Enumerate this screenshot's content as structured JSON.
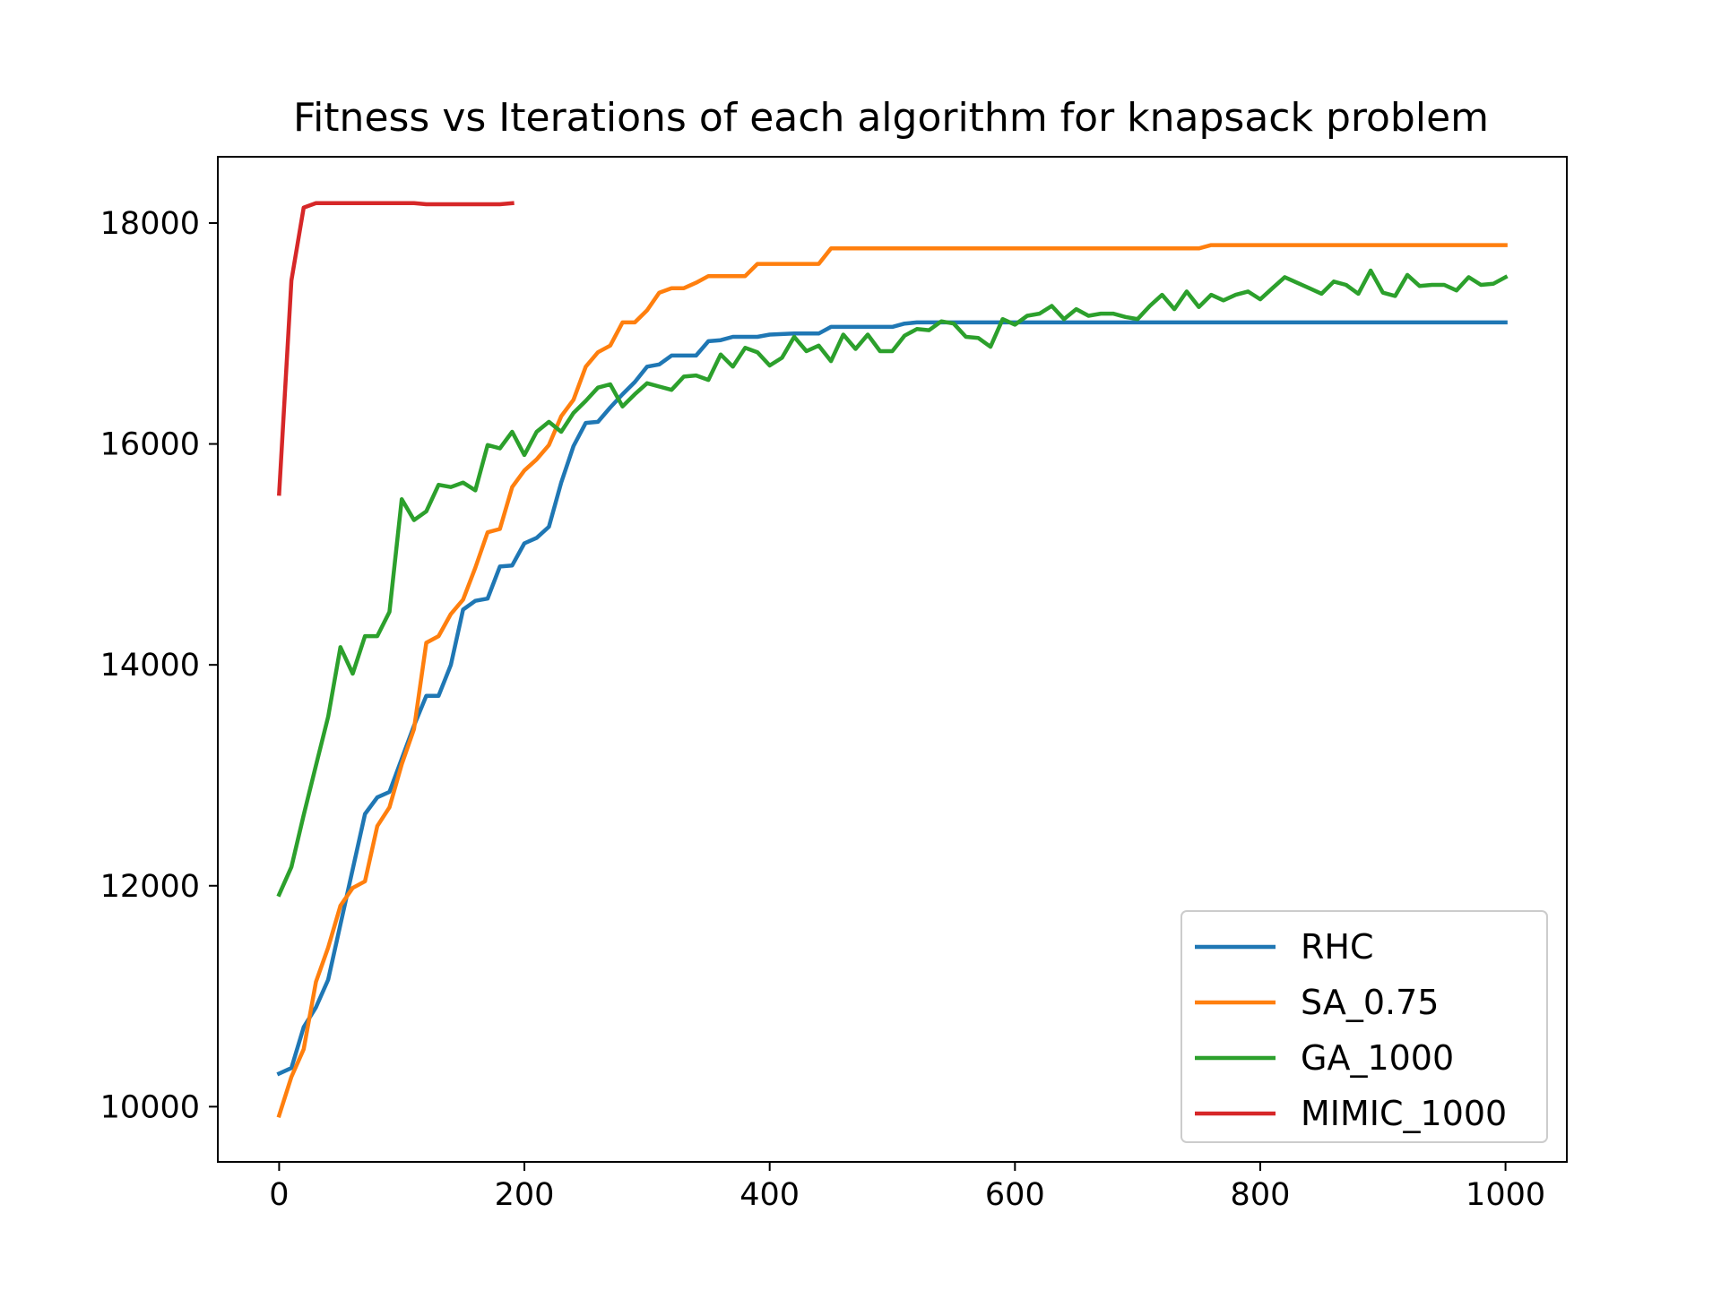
{
  "chart_data": {
    "type": "line",
    "title": "Fitness vs Iterations of each algorithm for knapsack problem",
    "xlabel": "",
    "ylabel": "",
    "xlim": [
      -50,
      1050
    ],
    "ylim": [
      9500,
      18600
    ],
    "xticks": [
      0,
      200,
      400,
      600,
      800,
      1000
    ],
    "yticks": [
      10000,
      12000,
      14000,
      16000,
      18000
    ],
    "grid": false,
    "legend_position": "lower-right",
    "series": [
      {
        "name": "RHC",
        "color": "#1f77b4",
        "x": [
          0,
          10,
          20,
          30,
          40,
          50,
          60,
          70,
          80,
          90,
          100,
          110,
          120,
          130,
          140,
          150,
          160,
          170,
          180,
          190,
          200,
          210,
          220,
          230,
          240,
          250,
          260,
          270,
          280,
          290,
          300,
          310,
          320,
          330,
          340,
          350,
          360,
          370,
          380,
          390,
          400,
          420,
          440,
          450,
          460,
          480,
          500,
          510,
          520,
          540,
          560,
          600,
          700,
          800,
          900,
          1000
        ],
        "y": [
          10300,
          10350,
          10720,
          10900,
          11150,
          11650,
          12150,
          12650,
          12800,
          12850,
          13150,
          13450,
          13720,
          13720,
          14000,
          14500,
          14580,
          14600,
          14890,
          14900,
          15100,
          15150,
          15250,
          15650,
          15980,
          16190,
          16200,
          16330,
          16450,
          16560,
          16700,
          16720,
          16800,
          16800,
          16800,
          16930,
          16940,
          16970,
          16970,
          16970,
          16990,
          17000,
          17000,
          17060,
          17060,
          17060,
          17060,
          17090,
          17100,
          17100,
          17100,
          17100,
          17100,
          17100,
          17100,
          17100
        ]
      },
      {
        "name": "SA_0.75",
        "color": "#ff7f0e",
        "x": [
          0,
          10,
          20,
          30,
          40,
          50,
          60,
          70,
          80,
          90,
          100,
          110,
          120,
          130,
          140,
          150,
          160,
          170,
          180,
          190,
          200,
          210,
          220,
          230,
          240,
          250,
          260,
          270,
          280,
          290,
          300,
          310,
          320,
          330,
          340,
          350,
          360,
          370,
          380,
          390,
          400,
          410,
          420,
          430,
          440,
          450,
          460,
          500,
          600,
          700,
          750,
          760,
          800,
          900,
          1000
        ],
        "y": [
          9920,
          10270,
          10520,
          11130,
          11440,
          11820,
          11980,
          12040,
          12540,
          12710,
          13100,
          13420,
          14200,
          14260,
          14460,
          14590,
          14880,
          15200,
          15230,
          15610,
          15760,
          15860,
          15990,
          16250,
          16400,
          16700,
          16830,
          16890,
          17100,
          17100,
          17210,
          17370,
          17410,
          17410,
          17460,
          17520,
          17520,
          17520,
          17520,
          17630,
          17630,
          17630,
          17630,
          17630,
          17630,
          17770,
          17770,
          17770,
          17770,
          17770,
          17770,
          17800,
          17800,
          17800,
          17800
        ]
      },
      {
        "name": "GA_1000",
        "color": "#2ca02c",
        "x": [
          0,
          10,
          20,
          30,
          40,
          50,
          60,
          70,
          80,
          90,
          100,
          110,
          120,
          130,
          140,
          150,
          160,
          170,
          180,
          190,
          200,
          210,
          220,
          230,
          240,
          250,
          260,
          270,
          280,
          290,
          300,
          310,
          320,
          330,
          340,
          350,
          360,
          370,
          380,
          390,
          400,
          410,
          420,
          430,
          440,
          450,
          460,
          470,
          480,
          490,
          500,
          510,
          520,
          530,
          540,
          550,
          560,
          570,
          580,
          590,
          600,
          610,
          620,
          630,
          640,
          650,
          660,
          670,
          680,
          690,
          700,
          710,
          720,
          730,
          740,
          750,
          760,
          770,
          780,
          790,
          800,
          810,
          820,
          830,
          840,
          850,
          860,
          870,
          880,
          890,
          900,
          910,
          920,
          930,
          940,
          950,
          960,
          970,
          980,
          990,
          1000
        ],
        "y": [
          11920,
          12170,
          12640,
          13090,
          13530,
          14160,
          13920,
          14260,
          14260,
          14480,
          15500,
          15310,
          15390,
          15630,
          15610,
          15650,
          15580,
          15990,
          15960,
          16110,
          15900,
          16110,
          16200,
          16110,
          16280,
          16390,
          16510,
          16540,
          16340,
          16450,
          16550,
          16520,
          16490,
          16610,
          16620,
          16580,
          16810,
          16700,
          16870,
          16830,
          16710,
          16780,
          16970,
          16840,
          16890,
          16750,
          16990,
          16860,
          16990,
          16840,
          16840,
          16980,
          17040,
          17030,
          17110,
          17090,
          16970,
          16960,
          16880,
          17130,
          17080,
          17160,
          17180,
          17250,
          17130,
          17220,
          17160,
          17180,
          17180,
          17150,
          17130,
          17250,
          17350,
          17220,
          17380,
          17240,
          17350,
          17300,
          17350,
          17380,
          17310,
          17410,
          17510,
          17460,
          17410,
          17360,
          17470,
          17440,
          17360,
          17570,
          17370,
          17340,
          17530,
          17430,
          17440,
          17440,
          17390,
          17510,
          17440,
          17450,
          17510
        ]
      },
      {
        "name": "MIMIC_1000",
        "color": "#d62728",
        "x": [
          0,
          10,
          20,
          30,
          40,
          50,
          60,
          70,
          80,
          90,
          100,
          110,
          120,
          130,
          140,
          150,
          160,
          170,
          180,
          190
        ],
        "y": [
          15550,
          17480,
          18140,
          18180,
          18180,
          18180,
          18180,
          18180,
          18180,
          18180,
          18180,
          18180,
          18170,
          18170,
          18170,
          18170,
          18170,
          18170,
          18170,
          18180
        ]
      }
    ]
  }
}
